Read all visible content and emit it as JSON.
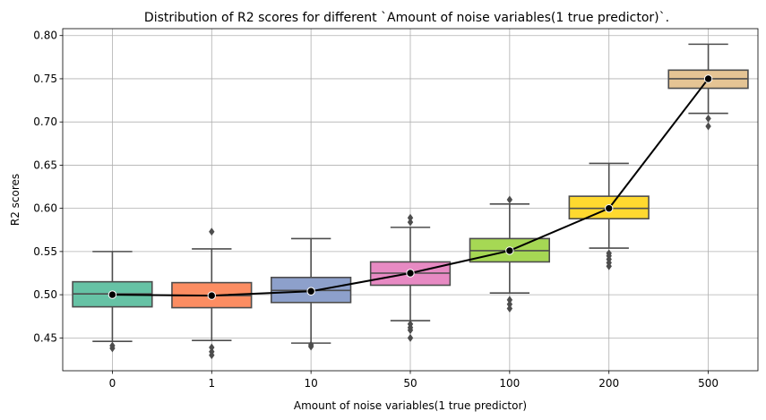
{
  "chart_data": {
    "type": "box",
    "title": "Distribution of R2 scores for different `Amount of noise variables(1 true predictor)`.",
    "xlabel": "Amount of noise variables(1 true predictor)",
    "ylabel": "R2 scores",
    "ylim": [
      0.412,
      0.808
    ],
    "yticks": [
      0.45,
      0.5,
      0.55,
      0.6,
      0.65,
      0.7,
      0.75,
      0.8
    ],
    "ytick_labels": [
      "0.45",
      "0.50",
      "0.55",
      "0.60",
      "0.65",
      "0.70",
      "0.75",
      "0.80"
    ],
    "grid": true,
    "categories": [
      "0",
      "1",
      "10",
      "50",
      "100",
      "200",
      "500"
    ],
    "colors": [
      "#66c2a5",
      "#fc8d62",
      "#8da0cb",
      "#e78ac3",
      "#a6d854",
      "#ffd92f",
      "#e5c494"
    ],
    "boxes": [
      {
        "whisker_low": 0.446,
        "q1": 0.486,
        "median": 0.501,
        "q3": 0.515,
        "whisker_high": 0.55,
        "outliers": [
          0.441,
          0.438
        ]
      },
      {
        "whisker_low": 0.447,
        "q1": 0.485,
        "median": 0.499,
        "q3": 0.514,
        "whisker_high": 0.553,
        "outliers": [
          0.439,
          0.434,
          0.43,
          0.573
        ]
      },
      {
        "whisker_low": 0.444,
        "q1": 0.491,
        "median": 0.505,
        "q3": 0.52,
        "whisker_high": 0.565,
        "outliers": [
          0.442,
          0.44
        ]
      },
      {
        "whisker_low": 0.47,
        "q1": 0.511,
        "median": 0.525,
        "q3": 0.538,
        "whisker_high": 0.578,
        "outliers": [
          0.466,
          0.462,
          0.459,
          0.45,
          0.584,
          0.589
        ]
      },
      {
        "whisker_low": 0.502,
        "q1": 0.538,
        "median": 0.551,
        "q3": 0.565,
        "whisker_high": 0.605,
        "outliers": [
          0.494,
          0.489,
          0.484,
          0.61
        ]
      },
      {
        "whisker_low": 0.554,
        "q1": 0.588,
        "median": 0.6,
        "q3": 0.614,
        "whisker_high": 0.652,
        "outliers": [
          0.548,
          0.545,
          0.541,
          0.537,
          0.533
        ]
      },
      {
        "whisker_low": 0.71,
        "q1": 0.739,
        "median": 0.75,
        "q3": 0.76,
        "whisker_high": 0.79,
        "outliers": [
          0.704,
          0.695
        ]
      }
    ],
    "mean_line": {
      "color": "#000000",
      "values": [
        0.5,
        0.499,
        0.504,
        0.525,
        0.551,
        0.6,
        0.75
      ]
    }
  }
}
